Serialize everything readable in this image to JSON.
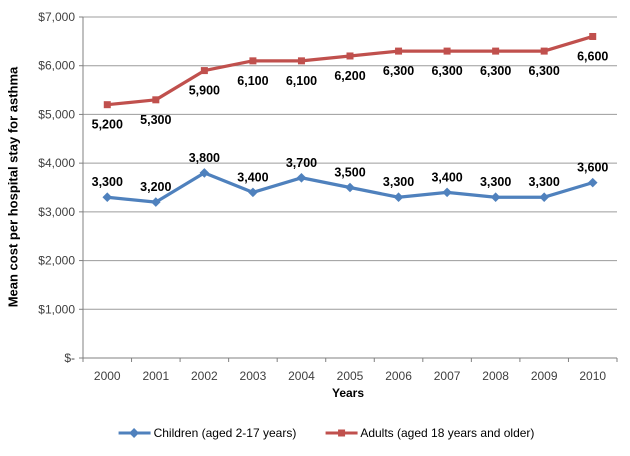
{
  "chart_data": {
    "type": "line",
    "title": "",
    "xlabel": "Years",
    "ylabel": "Mean cost per hospital stay for asthma",
    "categories": [
      "2000",
      "2001",
      "2002",
      "2003",
      "2004",
      "2005",
      "2006",
      "2007",
      "2008",
      "2009",
      "2010"
    ],
    "series": [
      {
        "name": "Children (aged 2-17 years)",
        "color": "#4F81BD",
        "marker": "diamond",
        "label_position": "above",
        "values": [
          3300,
          3200,
          3800,
          3400,
          3700,
          3500,
          3300,
          3400,
          3300,
          3300,
          3600
        ],
        "labels": [
          "3,300",
          "3,200",
          "3,800",
          "3,400",
          "3,700",
          "3,500",
          "3,300",
          "3,400",
          "3,300",
          "3,300",
          "3,600"
        ]
      },
      {
        "name": "Adults (aged 18 years and older)",
        "color": "#C0504D",
        "marker": "square",
        "label_position": "below",
        "values": [
          5200,
          5300,
          5900,
          6100,
          6100,
          6200,
          6300,
          6300,
          6300,
          6300,
          6600
        ],
        "labels": [
          "5,200",
          "5,300",
          "5,900",
          "6,100",
          "6,100",
          "6,200",
          "6,300",
          "6,300",
          "6,300",
          "6,300",
          "6,600"
        ]
      }
    ],
    "ylim": [
      0,
      7000
    ],
    "y_tick_step": 1000,
    "y_tick_labels": [
      "$-",
      "$1,000",
      "$2,000",
      "$3,000",
      "$4,000",
      "$5,000",
      "$6,000",
      "$7,000"
    ],
    "grid": true,
    "legend_position": "bottom",
    "grid_color": "#9C9C9C",
    "axis_color": "#808080",
    "tick_label_color": "#404040",
    "data_label_color": "#000000"
  }
}
